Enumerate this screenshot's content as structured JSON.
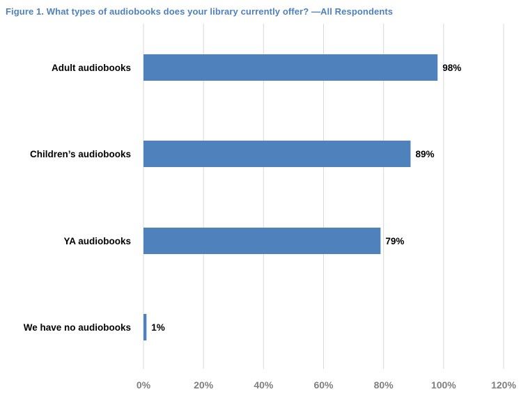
{
  "title": "Figure 1. What types of audiobooks does your library currently offer? —All Respondents",
  "colors": {
    "bar": "#4f81bd",
    "title": "#4f81bd",
    "grid": "#d9d9d9",
    "tick_text": "#7f7f7f"
  },
  "chart_data": {
    "type": "bar",
    "orientation": "horizontal",
    "categories": [
      "Adult audiobooks",
      "Children’s audiobooks",
      "YA audiobooks",
      "We have no audiobooks"
    ],
    "values": [
      98,
      89,
      79,
      1
    ],
    "data_labels": [
      "98%",
      "89%",
      "79%",
      "1%"
    ],
    "xlim": [
      0,
      120
    ],
    "xticks": [
      0,
      20,
      40,
      60,
      80,
      100,
      120
    ],
    "xtick_labels": [
      "0%",
      "20%",
      "40%",
      "60%",
      "80%",
      "100%",
      "120%"
    ],
    "grid": "vertical",
    "legend": "none"
  }
}
